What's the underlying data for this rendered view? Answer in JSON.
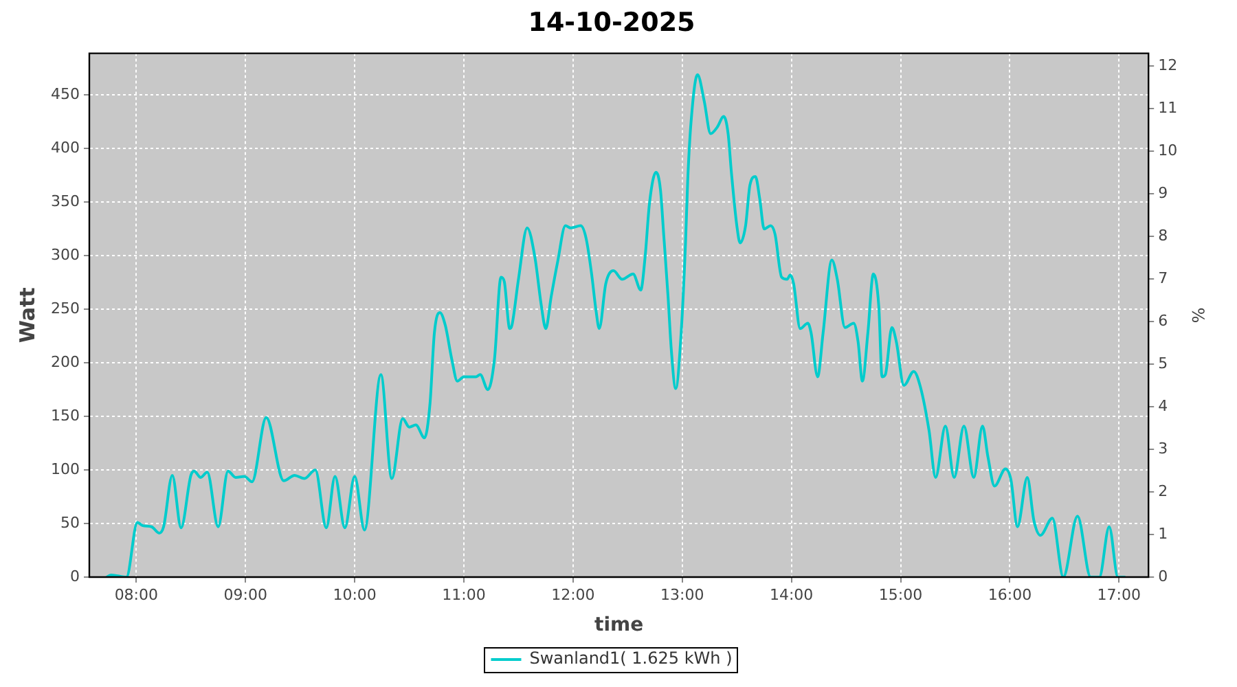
{
  "chart_data": {
    "type": "line",
    "title": "14-10-2025",
    "xlabel": "time",
    "ylabel": "Watt",
    "y2label": "%",
    "x": [
      7.73,
      7.77,
      7.91,
      8.01,
      8.06,
      8.14,
      8.21,
      8.25,
      8.33,
      8.41,
      8.5,
      8.53,
      8.59,
      8.65,
      8.75,
      8.84,
      8.91,
      8.99,
      9.06,
      9.19,
      9.35,
      9.45,
      9.54,
      9.64,
      9.74,
      9.82,
      9.91,
      10.0,
      10.09,
      10.24,
      10.34,
      10.44,
      10.5,
      10.56,
      10.64,
      10.69,
      10.73,
      10.78,
      10.83,
      10.89,
      10.94,
      11.0,
      11.11,
      11.15,
      11.22,
      11.28,
      11.34,
      11.37,
      11.42,
      11.44,
      11.5,
      11.58,
      11.65,
      11.71,
      11.75,
      11.8,
      11.86,
      11.93,
      11.98,
      12.07,
      12.12,
      12.17,
      12.21,
      12.24,
      12.3,
      12.37,
      12.45,
      12.55,
      12.62,
      12.66,
      12.7,
      12.76,
      12.8,
      12.83,
      12.87,
      12.9,
      12.94,
      12.99,
      13.03,
      13.05,
      13.08,
      13.14,
      13.2,
      13.26,
      13.32,
      13.38,
      13.42,
      13.45,
      13.5,
      13.53,
      13.58,
      13.62,
      13.67,
      13.71,
      13.75,
      13.81,
      13.85,
      13.91,
      13.96,
      13.99,
      14.02,
      14.08,
      14.15,
      14.18,
      14.24,
      14.29,
      14.37,
      14.42,
      14.49,
      14.57,
      14.61,
      14.65,
      14.7,
      14.75,
      14.8,
      14.83,
      14.86,
      14.92,
      14.96,
      15.03,
      15.12,
      15.18,
      15.26,
      15.32,
      15.41,
      15.49,
      15.58,
      15.67,
      15.75,
      15.8,
      15.86,
      15.96,
      16.01,
      16.07,
      16.16,
      16.22,
      16.28,
      16.39,
      16.49,
      16.62,
      16.74,
      16.82,
      16.91,
      16.99,
      17.05
    ],
    "series": [
      {
        "name": "Swanland1( 1.625 kWh )",
        "color": "#00cccc",
        "values": [
          0,
          2,
          0,
          51,
          48,
          47,
          41,
          47,
          95,
          46,
          95,
          99,
          93,
          98,
          47,
          99,
          93,
          94,
          89,
          149,
          90,
          95,
          92,
          100,
          46,
          94,
          46,
          94,
          44,
          189,
          92,
          148,
          140,
          142,
          130,
          162,
          228,
          247,
          235,
          203,
          183,
          187,
          187,
          189,
          175,
          203,
          280,
          276,
          232,
          235,
          278,
          326,
          299,
          253,
          232,
          262,
          295,
          328,
          326,
          328,
          316,
          283,
          249,
          232,
          274,
          286,
          278,
          283,
          268,
          299,
          349,
          378,
          362,
          320,
          262,
          212,
          176,
          228,
          312,
          370,
          424,
          469,
          445,
          414,
          420,
          430,
          414,
          378,
          328,
          312,
          328,
          366,
          374,
          353,
          325,
          328,
          320,
          280,
          278,
          282,
          274,
          232,
          237,
          228,
          187,
          228,
          296,
          278,
          233,
          237,
          220,
          183,
          228,
          283,
          253,
          187,
          189,
          233,
          220,
          179,
          192,
          178,
          137,
          93,
          141,
          93,
          141,
          93,
          141,
          112,
          85,
          101,
          91,
          47,
          93,
          53,
          39,
          55,
          0,
          57,
          0,
          0,
          47,
          0,
          0
        ]
      }
    ],
    "xlim": [
      7.57,
      17.27
    ],
    "xticks": [
      {
        "value": 8,
        "label": "08:00"
      },
      {
        "value": 9,
        "label": "09:00"
      },
      {
        "value": 10,
        "label": "10:00"
      },
      {
        "value": 11,
        "label": "11:00"
      },
      {
        "value": 12,
        "label": "12:00"
      },
      {
        "value": 13,
        "label": "13:00"
      },
      {
        "value": 14,
        "label": "14:00"
      },
      {
        "value": 15,
        "label": "15:00"
      },
      {
        "value": 16,
        "label": "16:00"
      },
      {
        "value": 17,
        "label": "17:00"
      }
    ],
    "ylim": [
      0,
      489
    ],
    "yticks": [
      0,
      50,
      100,
      150,
      200,
      250,
      300,
      350,
      400,
      450
    ],
    "y2lim": [
      0,
      12.3
    ],
    "y2ticks": [
      0,
      1,
      2,
      3,
      4,
      5,
      6,
      7,
      8,
      9,
      10,
      11,
      12
    ],
    "grid": true,
    "legend": "bottom",
    "marker": "none",
    "line_style": "solid"
  }
}
